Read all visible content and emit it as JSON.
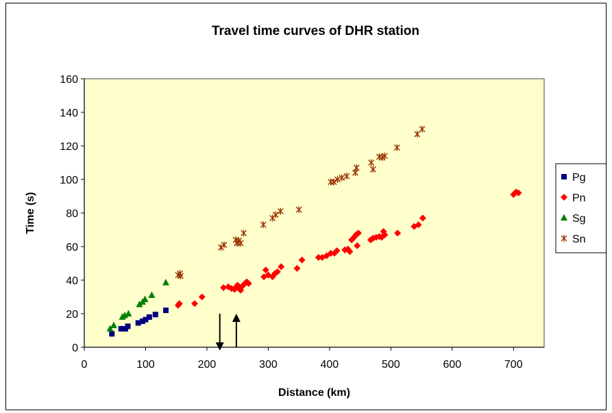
{
  "chart_data": {
    "type": "scatter",
    "title": "Travel time curves of DHR station",
    "xlabel": "Distance (km)",
    "ylabel": "Time (s)",
    "xlim": [
      0,
      750
    ],
    "ylim": [
      0,
      160
    ],
    "xticks": [
      "0",
      "100",
      "200",
      "300",
      "400",
      "500",
      "600",
      "700"
    ],
    "yticks": [
      "0",
      "20",
      "40",
      "60",
      "80",
      "100",
      "120",
      "140",
      "160"
    ],
    "grid": false,
    "plot_background": "#FFFFCC",
    "legend_position": "right",
    "series": [
      {
        "name": "Pg",
        "marker": "square",
        "color": "#000080",
        "points": [
          [
            45,
            8
          ],
          [
            60,
            11
          ],
          [
            63,
            11
          ],
          [
            67,
            11
          ],
          [
            71,
            12.5
          ],
          [
            88,
            14.5
          ],
          [
            95,
            15.5
          ],
          [
            100,
            16.5
          ],
          [
            106,
            18
          ],
          [
            116,
            19.5
          ],
          [
            133,
            22
          ]
        ]
      },
      {
        "name": "Pn",
        "marker": "diamond",
        "color": "#FF0000",
        "points": [
          [
            153,
            25
          ],
          [
            155,
            26
          ],
          [
            180,
            26
          ],
          [
            192,
            30
          ],
          [
            227,
            35.5
          ],
          [
            235,
            36
          ],
          [
            240,
            35
          ],
          [
            245,
            34.5
          ],
          [
            248,
            36
          ],
          [
            250,
            37
          ],
          [
            252,
            35
          ],
          [
            255,
            34
          ],
          [
            258,
            36.5
          ],
          [
            262,
            38
          ],
          [
            265,
            39
          ],
          [
            268,
            38
          ],
          [
            293,
            42
          ],
          [
            296,
            46
          ],
          [
            300,
            43
          ],
          [
            307,
            42
          ],
          [
            311,
            44
          ],
          [
            315,
            45
          ],
          [
            321,
            48
          ],
          [
            347,
            47
          ],
          [
            355,
            52
          ],
          [
            382,
            53.5
          ],
          [
            388,
            53.5
          ],
          [
            395,
            54.5
          ],
          [
            402,
            56
          ],
          [
            408,
            56
          ],
          [
            412,
            57.5
          ],
          [
            425,
            58
          ],
          [
            430,
            58.5
          ],
          [
            433,
            57
          ],
          [
            436,
            64
          ],
          [
            440,
            65.5
          ],
          [
            443,
            67
          ],
          [
            445,
            60.5
          ],
          [
            447,
            68
          ],
          [
            467,
            64
          ],
          [
            471,
            65
          ],
          [
            476,
            65.5
          ],
          [
            481,
            66
          ],
          [
            485,
            65.5
          ],
          [
            488,
            69
          ],
          [
            490,
            67
          ],
          [
            511,
            68
          ],
          [
            538,
            72
          ],
          [
            545,
            73
          ],
          [
            552,
            77
          ],
          [
            700,
            91
          ],
          [
            704,
            92.5
          ],
          [
            708,
            92
          ]
        ]
      },
      {
        "name": "Sg",
        "marker": "triangle",
        "color": "#008000",
        "points": [
          [
            42,
            11
          ],
          [
            48,
            13
          ],
          [
            62,
            18
          ],
          [
            66,
            19
          ],
          [
            72,
            20
          ],
          [
            90,
            25.5
          ],
          [
            95,
            27
          ],
          [
            99,
            28.5
          ],
          [
            110,
            31
          ],
          [
            133,
            38.5
          ]
        ]
      },
      {
        "name": "Sn",
        "marker": "star",
        "color": "#993300",
        "points": [
          [
            153,
            43
          ],
          [
            156,
            44
          ],
          [
            157,
            42.5
          ],
          [
            223,
            59.5
          ],
          [
            228,
            61
          ],
          [
            247,
            64
          ],
          [
            249,
            62
          ],
          [
            252,
            63.5
          ],
          [
            255,
            62
          ],
          [
            260,
            68
          ],
          [
            292,
            73
          ],
          [
            307,
            77
          ],
          [
            312,
            79
          ],
          [
            320,
            81
          ],
          [
            350,
            82
          ],
          [
            402,
            98.5
          ],
          [
            407,
            98.5
          ],
          [
            413,
            100
          ],
          [
            420,
            101
          ],
          [
            428,
            102
          ],
          [
            442,
            104
          ],
          [
            444,
            107
          ],
          [
            468,
            110
          ],
          [
            471,
            106
          ],
          [
            481,
            113.5
          ],
          [
            486,
            113
          ],
          [
            490,
            114
          ],
          [
            510,
            119
          ],
          [
            543,
            127
          ],
          [
            551,
            130
          ]
        ]
      }
    ],
    "annotations": [
      {
        "type": "arrow",
        "direction": "down",
        "x": 221,
        "y_from": 20,
        "y_to": -2
      },
      {
        "type": "arrow",
        "direction": "up",
        "x": 248,
        "y_from": 0,
        "y_to": 20
      }
    ]
  }
}
